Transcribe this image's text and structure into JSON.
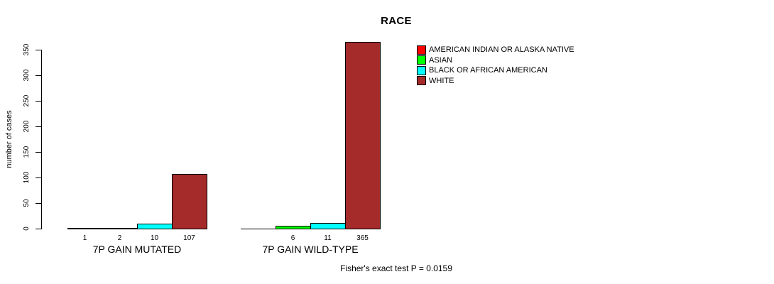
{
  "chart_data": {
    "type": "bar",
    "title": "RACE",
    "ylabel": "number of cases",
    "ylim": [
      0,
      350
    ],
    "yticks": [
      0,
      50,
      100,
      150,
      200,
      250,
      300,
      350
    ],
    "grid": false,
    "legend_position": "top-right",
    "legend": [
      {
        "label": "AMERICAN INDIAN OR ALASKA NATIVE",
        "color": "#ff0000"
      },
      {
        "label": "ASIAN",
        "color": "#00ff00"
      },
      {
        "label": "BLACK OR AFRICAN AMERICAN",
        "color": "#00ffff"
      },
      {
        "label": "WHITE",
        "color": "#a52a2a"
      }
    ],
    "categories": [
      "7P GAIN MUTATED",
      "7P GAIN WILD-TYPE"
    ],
    "series": [
      {
        "name": "AMERICAN INDIAN OR ALASKA NATIVE",
        "values": [
          1,
          0
        ]
      },
      {
        "name": "ASIAN",
        "values": [
          2,
          6
        ]
      },
      {
        "name": "BLACK OR AFRICAN AMERICAN",
        "values": [
          10,
          11
        ]
      },
      {
        "name": "WHITE",
        "values": [
          107,
          365
        ]
      }
    ],
    "groups": [
      {
        "label": "7P GAIN MUTATED",
        "values": [
          1,
          2,
          10,
          107
        ],
        "value_labels": [
          "1",
          "2",
          "10",
          "107"
        ]
      },
      {
        "label": "7P GAIN WILD-TYPE",
        "values": [
          0,
          6,
          11,
          365
        ],
        "value_labels": [
          "",
          "6",
          "11",
          "365"
        ]
      }
    ],
    "footnote": "Fisher's exact test P = 0.0159"
  }
}
